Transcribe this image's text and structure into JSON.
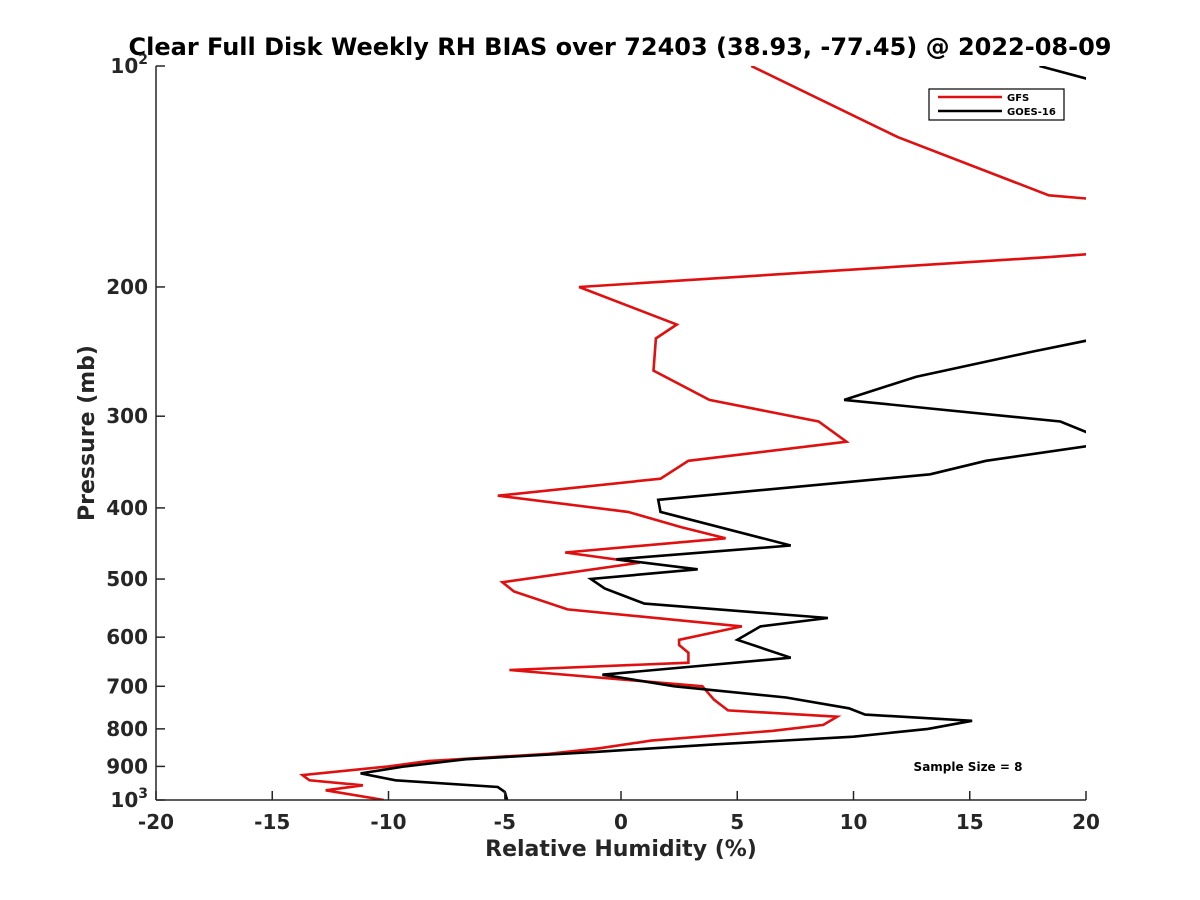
{
  "chart_data": {
    "type": "line",
    "title": "Clear Full Disk Weekly RH BIAS over 72403 (38.93, -77.45) @ 2022-08-09",
    "xlabel": "Relative Humidity (%)",
    "ylabel": "Pressure (mb)",
    "xlim": [
      -20,
      20
    ],
    "ylim": [
      100,
      1000
    ],
    "y_scale": "log",
    "y_reversed": true,
    "x_ticks": [
      "-20",
      "-15",
      "-10",
      "-5",
      "0",
      "5",
      "10",
      "15",
      "20"
    ],
    "y_ticks": [
      {
        "value": 100,
        "base": "10",
        "exp": "2"
      },
      {
        "value": 200,
        "base": "200",
        "exp": ""
      },
      {
        "value": 300,
        "base": "300",
        "exp": ""
      },
      {
        "value": 400,
        "base": "400",
        "exp": ""
      },
      {
        "value": 500,
        "base": "500",
        "exp": ""
      },
      {
        "value": 600,
        "base": "600",
        "exp": ""
      },
      {
        "value": 700,
        "base": "700",
        "exp": ""
      },
      {
        "value": 800,
        "base": "800",
        "exp": ""
      },
      {
        "value": 900,
        "base": "900",
        "exp": ""
      },
      {
        "value": 1000,
        "base": "10",
        "exp": "3"
      }
    ],
    "grid": false,
    "legend_position": "top-right",
    "annotation": "Sample Size = 8",
    "series": [
      {
        "name": "GFS",
        "color": "#e01010",
        "points": [
          [
            5.6,
            100
          ],
          [
            11.9,
            125
          ],
          [
            18.4,
            150
          ],
          [
            20.5,
            152
          ],
          [
            null,
            null
          ],
          [
            20.5,
            180
          ],
          [
            18.5,
            182
          ],
          [
            -1.8,
            200
          ],
          [
            2.4,
            225
          ],
          [
            1.5,
            235
          ],
          [
            1.4,
            260
          ],
          [
            3.8,
            285
          ],
          [
            8.5,
            305
          ],
          [
            9.7,
            325
          ],
          [
            2.9,
            345
          ],
          [
            1.7,
            365
          ],
          [
            -5.3,
            385
          ],
          [
            0.3,
            405
          ],
          [
            2.6,
            425
          ],
          [
            4.5,
            440
          ],
          [
            -2.4,
            460
          ],
          [
            0.8,
            475
          ],
          [
            -5.1,
            505
          ],
          [
            -4.6,
            520
          ],
          [
            -2.3,
            550
          ],
          [
            5.2,
            580
          ],
          [
            2.5,
            605
          ],
          [
            2.5,
            615
          ],
          [
            2.9,
            630
          ],
          [
            2.9,
            650
          ],
          [
            -4.8,
            665
          ],
          [
            3.5,
            700
          ],
          [
            4.0,
            730
          ],
          [
            4.6,
            755
          ],
          [
            9.3,
            770
          ],
          [
            8.7,
            790
          ],
          [
            6.5,
            805
          ],
          [
            1.3,
            830
          ],
          [
            -0.9,
            850
          ],
          [
            -3.1,
            865
          ],
          [
            -8.3,
            885
          ],
          [
            -10.0,
            900
          ],
          [
            -13.7,
            925
          ],
          [
            -13.4,
            940
          ],
          [
            -11.1,
            955
          ],
          [
            -12.7,
            970
          ],
          [
            -10.2,
            1000
          ]
        ]
      },
      {
        "name": "GOES-16",
        "color": "#000000",
        "points": [
          [
            18.0,
            100
          ],
          [
            20.5,
            105
          ],
          [
            null,
            null
          ],
          [
            20.5,
            235
          ],
          [
            17.7,
            245
          ],
          [
            12.7,
            265
          ],
          [
            9.6,
            285
          ],
          [
            18.9,
            305
          ],
          [
            20.3,
            318
          ],
          [
            20.5,
            320
          ],
          [
            null,
            null
          ],
          [
            20.5,
            328
          ],
          [
            15.7,
            345
          ],
          [
            13.3,
            360
          ],
          [
            1.6,
            390
          ],
          [
            1.7,
            405
          ],
          [
            7.3,
            450
          ],
          [
            -0.2,
            470
          ],
          [
            3.3,
            485
          ],
          [
            -1.3,
            500
          ],
          [
            -0.7,
            515
          ],
          [
            1.0,
            540
          ],
          [
            8.9,
            565
          ],
          [
            6.0,
            580
          ],
          [
            5.0,
            605
          ],
          [
            7.3,
            640
          ],
          [
            -0.8,
            675
          ],
          [
            2.3,
            700
          ],
          [
            7.1,
            725
          ],
          [
            9.8,
            750
          ],
          [
            10.5,
            765
          ],
          [
            15.1,
            780
          ],
          [
            13.2,
            800
          ],
          [
            10.0,
            820
          ],
          [
            4.0,
            840
          ],
          [
            -1.1,
            860
          ],
          [
            -6.7,
            880
          ],
          [
            -9.3,
            900
          ],
          [
            -11.2,
            920
          ],
          [
            -9.7,
            940
          ],
          [
            -5.3,
            960
          ],
          [
            -5.0,
            975
          ],
          [
            -4.9,
            1000
          ]
        ]
      }
    ]
  }
}
